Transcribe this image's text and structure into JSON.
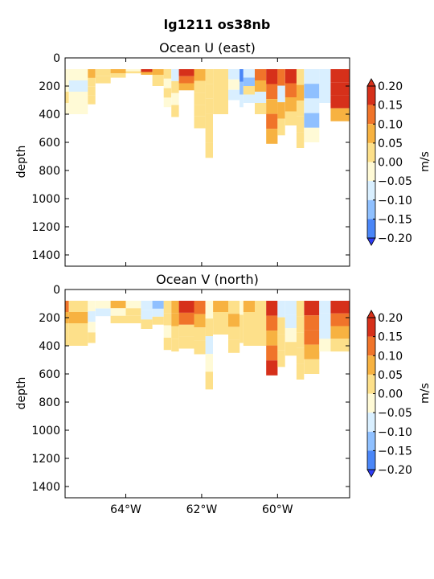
{
  "suptitle": "lg1211 os38nb",
  "colors": {
    "levels": [
      -0.2,
      -0.15,
      -0.1,
      -0.05,
      0.0,
      0.05,
      0.1,
      0.15,
      0.2
    ],
    "bins": [
      "#2d3cf5",
      "#4a86f7",
      "#8fc0ff",
      "#d9efff",
      "#fffad6",
      "#fde08a",
      "#f7b241",
      "#f0742a",
      "#d6301a"
    ]
  },
  "chart_data": [
    {
      "type": "heatmap",
      "title": "Ocean U (east)",
      "xlabel": "",
      "ylabel": "depth",
      "xticks": [
        {
          "value": -64,
          "label": "64°W"
        },
        {
          "value": -62,
          "label": "62°W"
        },
        {
          "value": -60,
          "label": "60°W"
        }
      ],
      "xlim": [
        -65.6,
        -58.1
      ],
      "ylim": [
        1480,
        0
      ],
      "yticks": [
        0,
        200,
        400,
        600,
        800,
        1000,
        1200,
        1400
      ],
      "colorbar": {
        "label": "m/s",
        "ticks": [
          "0.20",
          "0.15",
          "0.10",
          "0.05",
          "0.00",
          "−0.05",
          "−0.10",
          "−0.15",
          "−0.20"
        ],
        "extend": "both"
      },
      "columns": [
        {
          "x0": -65.6,
          "x1": -65.5,
          "top": 80,
          "bottom": 400,
          "v": [
            -0.05,
            -0.05,
            0.0,
            -0.05
          ]
        },
        {
          "x0": -65.5,
          "x1": -65.0,
          "top": 80,
          "bottom": 400,
          "v": [
            -0.05,
            -0.06,
            -0.05,
            -0.04
          ]
        },
        {
          "x0": -65.0,
          "x1": -64.8,
          "top": 80,
          "bottom": 330,
          "v": [
            0.06,
            0.02,
            0.0,
            0.01
          ]
        },
        {
          "x0": -64.8,
          "x1": -64.4,
          "top": 80,
          "bottom": 180,
          "v": [
            0.03,
            0.0
          ]
        },
        {
          "x0": -64.4,
          "x1": -64.0,
          "top": 80,
          "bottom": 140,
          "v": [
            0.07,
            0.02
          ]
        },
        {
          "x0": -64.0,
          "x1": -63.6,
          "top": 80,
          "bottom": 110,
          "v": [
            -0.05,
            0.0
          ]
        },
        {
          "x0": -63.6,
          "x1": -63.3,
          "top": 80,
          "bottom": 120,
          "v": [
            0.18,
            0.06
          ]
        },
        {
          "x0": -63.3,
          "x1": -63.0,
          "top": 80,
          "bottom": 200,
          "v": [
            0.08,
            0.04,
            0.0
          ]
        },
        {
          "x0": -63.0,
          "x1": -62.8,
          "top": 80,
          "bottom": 350,
          "v": [
            0.0,
            -0.05,
            0.0,
            -0.04
          ]
        },
        {
          "x0": -62.8,
          "x1": -62.6,
          "top": 80,
          "bottom": 420,
          "v": [
            -0.06,
            0.0,
            -0.05,
            0.03
          ]
        },
        {
          "x0": -62.6,
          "x1": -62.2,
          "top": 80,
          "bottom": 230,
          "v": [
            0.17,
            0.12,
            0.06
          ]
        },
        {
          "x0": -62.2,
          "x1": -61.9,
          "top": 80,
          "bottom": 500,
          "v": [
            0.06,
            0.02,
            0.0,
            0.03,
            0.01
          ]
        },
        {
          "x0": -61.9,
          "x1": -61.7,
          "top": 80,
          "bottom": 710,
          "v": [
            0.03,
            0.0,
            0.02,
            0.01,
            0.0,
            0.02
          ]
        },
        {
          "x0": -61.7,
          "x1": -61.3,
          "top": 80,
          "bottom": 400,
          "v": [
            0.02,
            0.03,
            0.01,
            0.0
          ]
        },
        {
          "x0": -61.3,
          "x1": -61.0,
          "top": 80,
          "bottom": 300,
          "v": [
            -0.06,
            -0.05,
            -0.09
          ]
        },
        {
          "x0": -61.0,
          "x1": -60.9,
          "top": 80,
          "bottom": 350,
          "v": [
            -0.19,
            -0.12,
            -0.08
          ]
        },
        {
          "x0": -60.9,
          "x1": -60.6,
          "top": 80,
          "bottom": 320,
          "v": [
            -0.07,
            -0.12,
            0.0,
            -0.06
          ]
        },
        {
          "x0": -60.6,
          "x1": -60.3,
          "top": 80,
          "bottom": 400,
          "v": [
            0.11,
            0.06,
            -0.1,
            0.0
          ]
        },
        {
          "x0": -60.3,
          "x1": -60.0,
          "top": 80,
          "bottom": 610,
          "v": [
            0.16,
            0.12,
            0.08,
            0.11,
            0.07
          ]
        },
        {
          "x0": -60.0,
          "x1": -59.8,
          "top": 80,
          "bottom": 550,
          "v": [
            0.13,
            -0.08,
            0.07,
            0.0
          ]
        },
        {
          "x0": -59.8,
          "x1": -59.5,
          "top": 80,
          "bottom": 480,
          "v": [
            0.17,
            0.12,
            0.07,
            0.0
          ]
        },
        {
          "x0": -59.5,
          "x1": -59.3,
          "top": 80,
          "bottom": 640,
          "v": [
            0.04,
            0.06,
            0.03,
            0.02,
            0.01
          ]
        },
        {
          "x0": -59.3,
          "x1": -58.9,
          "top": 80,
          "bottom": 600,
          "v": [
            -0.06,
            -0.12,
            -0.07,
            -0.15,
            -0.05
          ]
        },
        {
          "x0": -58.9,
          "x1": -58.6,
          "top": 80,
          "bottom": 320,
          "v": [
            -0.09,
            -0.08,
            -0.06
          ]
        },
        {
          "x0": -58.6,
          "x1": -58.1,
          "top": 80,
          "bottom": 450,
          "v": [
            0.19,
            0.21,
            0.17,
            0.06
          ]
        }
      ]
    },
    {
      "type": "heatmap",
      "title": "Ocean V (north)",
      "xlabel": "",
      "ylabel": "depth",
      "xticks": [
        {
          "value": -64,
          "label": "64°W"
        },
        {
          "value": -62,
          "label": "62°W"
        },
        {
          "value": -60,
          "label": "60°W"
        }
      ],
      "xlim": [
        -65.6,
        -58.1
      ],
      "ylim": [
        1480,
        0
      ],
      "yticks": [
        0,
        200,
        400,
        600,
        800,
        1000,
        1200,
        1400
      ],
      "colorbar": {
        "label": "m/s",
        "ticks": [
          "0.20",
          "0.15",
          "0.10",
          "0.05",
          "0.00",
          "−0.05",
          "−0.10",
          "−0.15",
          "−0.20"
        ],
        "extend": "both"
      },
      "columns": [
        {
          "x0": -65.6,
          "x1": -65.5,
          "top": 80,
          "bottom": 400,
          "v": [
            0.13,
            0.06,
            0.02,
            0.0
          ]
        },
        {
          "x0": -65.5,
          "x1": -65.0,
          "top": 80,
          "bottom": 400,
          "v": [
            0.02,
            0.06,
            0.03,
            0.0
          ]
        },
        {
          "x0": -65.0,
          "x1": -64.8,
          "top": 80,
          "bottom": 380,
          "v": [
            -0.05,
            -0.07,
            -0.05,
            0.0
          ]
        },
        {
          "x0": -64.8,
          "x1": -64.4,
          "top": 80,
          "bottom": 190,
          "v": [
            -0.05,
            -0.06
          ]
        },
        {
          "x0": -64.4,
          "x1": -64.0,
          "top": 80,
          "bottom": 240,
          "v": [
            0.06,
            -0.05,
            0.0
          ]
        },
        {
          "x0": -64.0,
          "x1": -63.6,
          "top": 80,
          "bottom": 240,
          "v": [
            -0.05,
            0.0,
            0.04
          ]
        },
        {
          "x0": -63.6,
          "x1": -63.3,
          "top": 80,
          "bottom": 280,
          "v": [
            -0.06,
            -0.08,
            0.0
          ]
        },
        {
          "x0": -63.3,
          "x1": -63.0,
          "top": 80,
          "bottom": 250,
          "v": [
            -0.15,
            -0.09,
            0.0
          ]
        },
        {
          "x0": -63.0,
          "x1": -62.8,
          "top": 80,
          "bottom": 430,
          "v": [
            0.03,
            0.0,
            -0.05,
            0.02
          ]
        },
        {
          "x0": -62.8,
          "x1": -62.6,
          "top": 80,
          "bottom": 440,
          "v": [
            0.08,
            0.05,
            0.02,
            0.0
          ]
        },
        {
          "x0": -62.6,
          "x1": -62.2,
          "top": 80,
          "bottom": 420,
          "v": [
            0.16,
            0.1,
            0.04,
            0.02
          ]
        },
        {
          "x0": -62.2,
          "x1": -61.9,
          "top": 80,
          "bottom": 460,
          "v": [
            0.14,
            0.06,
            0.03,
            0.0
          ]
        },
        {
          "x0": -61.9,
          "x1": -61.7,
          "top": 80,
          "bottom": 710,
          "v": [
            -0.05,
            0.0,
            -0.06,
            -0.05,
            0.0
          ]
        },
        {
          "x0": -61.7,
          "x1": -61.3,
          "top": 80,
          "bottom": 320,
          "v": [
            0.06,
            0.03,
            0.0
          ]
        },
        {
          "x0": -61.3,
          "x1": -61.0,
          "top": 80,
          "bottom": 450,
          "v": [
            0.02,
            0.06,
            0.0,
            0.04
          ]
        },
        {
          "x0": -61.0,
          "x1": -60.9,
          "top": 80,
          "bottom": 380,
          "v": [
            -0.05,
            0.03,
            0.0
          ]
        },
        {
          "x0": -60.9,
          "x1": -60.6,
          "top": 80,
          "bottom": 400,
          "v": [
            0.06,
            0.04,
            0.0,
            0.02
          ]
        },
        {
          "x0": -60.6,
          "x1": -60.3,
          "top": 80,
          "bottom": 400,
          "v": [
            0.02,
            0.0,
            0.03,
            0.01
          ]
        },
        {
          "x0": -60.3,
          "x1": -60.0,
          "top": 80,
          "bottom": 610,
          "v": [
            0.16,
            0.12,
            0.08,
            0.11,
            0.18
          ]
        },
        {
          "x0": -60.0,
          "x1": -59.8,
          "top": 80,
          "bottom": 550,
          "v": [
            -0.06,
            0.0,
            0.03,
            0.0
          ]
        },
        {
          "x0": -59.8,
          "x1": -59.5,
          "top": 80,
          "bottom": 470,
          "v": [
            -0.07,
            -0.09,
            -0.05,
            0.0
          ]
        },
        {
          "x0": -59.5,
          "x1": -59.3,
          "top": 80,
          "bottom": 640,
          "v": [
            0.0,
            0.03,
            0.02,
            0.0,
            0.01
          ]
        },
        {
          "x0": -59.3,
          "x1": -58.9,
          "top": 80,
          "bottom": 600,
          "v": [
            0.19,
            0.14,
            0.1,
            0.06,
            0.03
          ]
        },
        {
          "x0": -58.9,
          "x1": -58.6,
          "top": 80,
          "bottom": 440,
          "v": [
            -0.06,
            -0.08,
            -0.09,
            -0.05
          ]
        },
        {
          "x0": -58.6,
          "x1": -58.1,
          "top": 80,
          "bottom": 440,
          "v": [
            0.19,
            0.14,
            0.07,
            0.03
          ]
        }
      ]
    }
  ]
}
